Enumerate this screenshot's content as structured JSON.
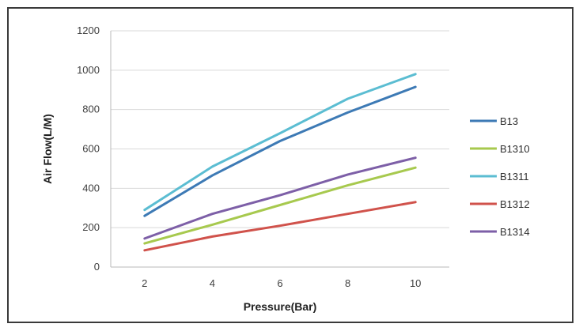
{
  "chart_data": {
    "type": "line",
    "title": "",
    "xlabel": "Pressure(Bar)",
    "ylabel": "Air Flow(L/M)",
    "x": [
      2,
      4,
      6,
      8,
      10
    ],
    "xlim": [
      1,
      11
    ],
    "ylim": [
      0,
      1200
    ],
    "yticks": [
      0,
      200,
      400,
      600,
      800,
      1000,
      1200
    ],
    "grid": "horizontal",
    "legend_position": "right",
    "series": [
      {
        "name": "B13",
        "color": "#3d7ab5",
        "values": [
          260,
          465,
          640,
          785,
          915
        ]
      },
      {
        "name": "B1310",
        "color": "#a7c94e",
        "values": [
          120,
          215,
          315,
          415,
          505
        ]
      },
      {
        "name": "B1311",
        "color": "#5bbdd2",
        "values": [
          290,
          510,
          680,
          855,
          980
        ]
      },
      {
        "name": "B1312",
        "color": "#d0524b",
        "values": [
          85,
          155,
          210,
          270,
          330
        ]
      },
      {
        "name": "B1314",
        "color": "#7d5fa7",
        "values": [
          145,
          270,
          365,
          470,
          555
        ]
      }
    ]
  }
}
